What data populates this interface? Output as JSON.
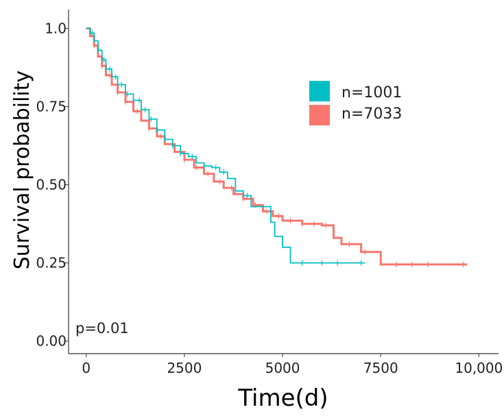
{
  "chart_data": {
    "type": "line",
    "subtype": "kaplan-meier",
    "title": "",
    "xlabel": "Time(d)",
    "ylabel": "Survival probability",
    "xlim": [
      -450,
      10500
    ],
    "ylim": [
      -0.04,
      1.06
    ],
    "x_ticks": [
      0,
      2500,
      5000,
      7500,
      10000
    ],
    "x_tick_labels": [
      "0",
      "2500",
      "5000",
      "7500",
      "10,000"
    ],
    "y_ticks": [
      0,
      0.25,
      0.5,
      0.75,
      1.0
    ],
    "y_tick_labels": [
      "0.00",
      "0.25",
      "0.50",
      "0.75",
      "1.0"
    ],
    "grid": false,
    "legend_position": "top-right",
    "annotation": "p=0.01",
    "series": [
      {
        "name": "n=1001",
        "color": "#00BFC4",
        "x": [
          0,
          100,
          200,
          300,
          400,
          500,
          650,
          800,
          1000,
          1200,
          1400,
          1600,
          1800,
          2000,
          2200,
          2400,
          2600,
          2800,
          3000,
          3200,
          3400,
          3600,
          3800,
          4000,
          4200,
          4500,
          4700,
          4800,
          5000,
          5200,
          6000,
          7100
        ],
        "y": [
          1.0,
          0.985,
          0.96,
          0.93,
          0.9,
          0.87,
          0.845,
          0.82,
          0.79,
          0.77,
          0.74,
          0.71,
          0.675,
          0.645,
          0.625,
          0.6,
          0.59,
          0.57,
          0.56,
          0.555,
          0.54,
          0.52,
          0.48,
          0.465,
          0.43,
          0.43,
          0.38,
          0.335,
          0.3,
          0.25,
          0.25,
          0.25
        ],
        "censor_x": [
          150,
          300,
          450,
          600,
          750,
          900,
          1050,
          1200,
          1350,
          1500,
          1650,
          1800,
          2000,
          2200,
          2400,
          2700,
          3000,
          3300,
          3500,
          3800,
          4100,
          5500,
          6000,
          6400,
          7000
        ]
      },
      {
        "name": "n=7033",
        "color": "#F8766D",
        "x": [
          0,
          100,
          200,
          300,
          400,
          500,
          650,
          800,
          1000,
          1200,
          1400,
          1600,
          1800,
          2000,
          2250,
          2500,
          2750,
          3000,
          3250,
          3500,
          3750,
          4000,
          4250,
          4500,
          4750,
          5000,
          5500,
          6000,
          6300,
          6500,
          7000,
          7500,
          8500,
          9700
        ],
        "y": [
          1.0,
          0.975,
          0.945,
          0.91,
          0.88,
          0.85,
          0.82,
          0.795,
          0.765,
          0.735,
          0.705,
          0.68,
          0.655,
          0.63,
          0.605,
          0.58,
          0.555,
          0.535,
          0.51,
          0.49,
          0.47,
          0.455,
          0.435,
          0.415,
          0.4,
          0.385,
          0.375,
          0.37,
          0.33,
          0.31,
          0.285,
          0.245,
          0.245,
          0.245
        ],
        "censor_x": [
          200,
          400,
          600,
          800,
          1000,
          1300,
          1600,
          1900,
          2200,
          2500,
          2800,
          3100,
          3400,
          3700,
          4000,
          4300,
          4600,
          4900,
          5200,
          5500,
          5800,
          6100,
          6700,
          7100,
          7900,
          8300,
          8700,
          9600
        ]
      }
    ]
  }
}
